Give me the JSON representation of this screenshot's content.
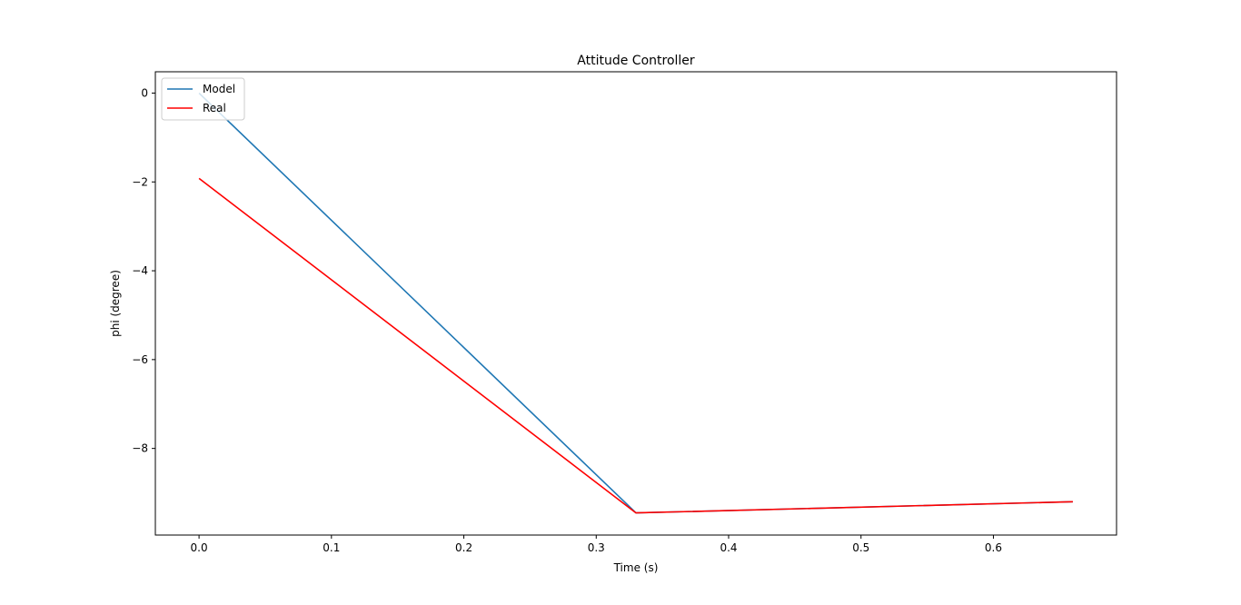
{
  "chart_data": {
    "type": "line",
    "title": "Attitude Controller",
    "xlabel": "Time (s)",
    "ylabel": "phi (degree)",
    "xlim": [
      -0.033,
      0.693
    ],
    "ylim": [
      -9.95,
      0.48
    ],
    "xticks": [
      0.0,
      0.1,
      0.2,
      0.3,
      0.4,
      0.5,
      0.6
    ],
    "xtick_labels": [
      "0.0",
      "0.1",
      "0.2",
      "0.3",
      "0.4",
      "0.5",
      "0.6"
    ],
    "yticks": [
      0,
      -2,
      -4,
      -6,
      -8
    ],
    "ytick_labels": [
      "0",
      "−2",
      "−4",
      "−6",
      "−8"
    ],
    "grid": false,
    "legend_position": "top-left",
    "series": [
      {
        "name": "Model",
        "color": "#1f77b4",
        "x": [
          0.0,
          0.33,
          0.66
        ],
        "y": [
          0.0,
          -9.45,
          -9.2
        ]
      },
      {
        "name": "Real",
        "color": "#ff0000",
        "x": [
          0.0,
          0.33,
          0.66
        ],
        "y": [
          -1.92,
          -9.45,
          -9.2
        ]
      }
    ]
  }
}
